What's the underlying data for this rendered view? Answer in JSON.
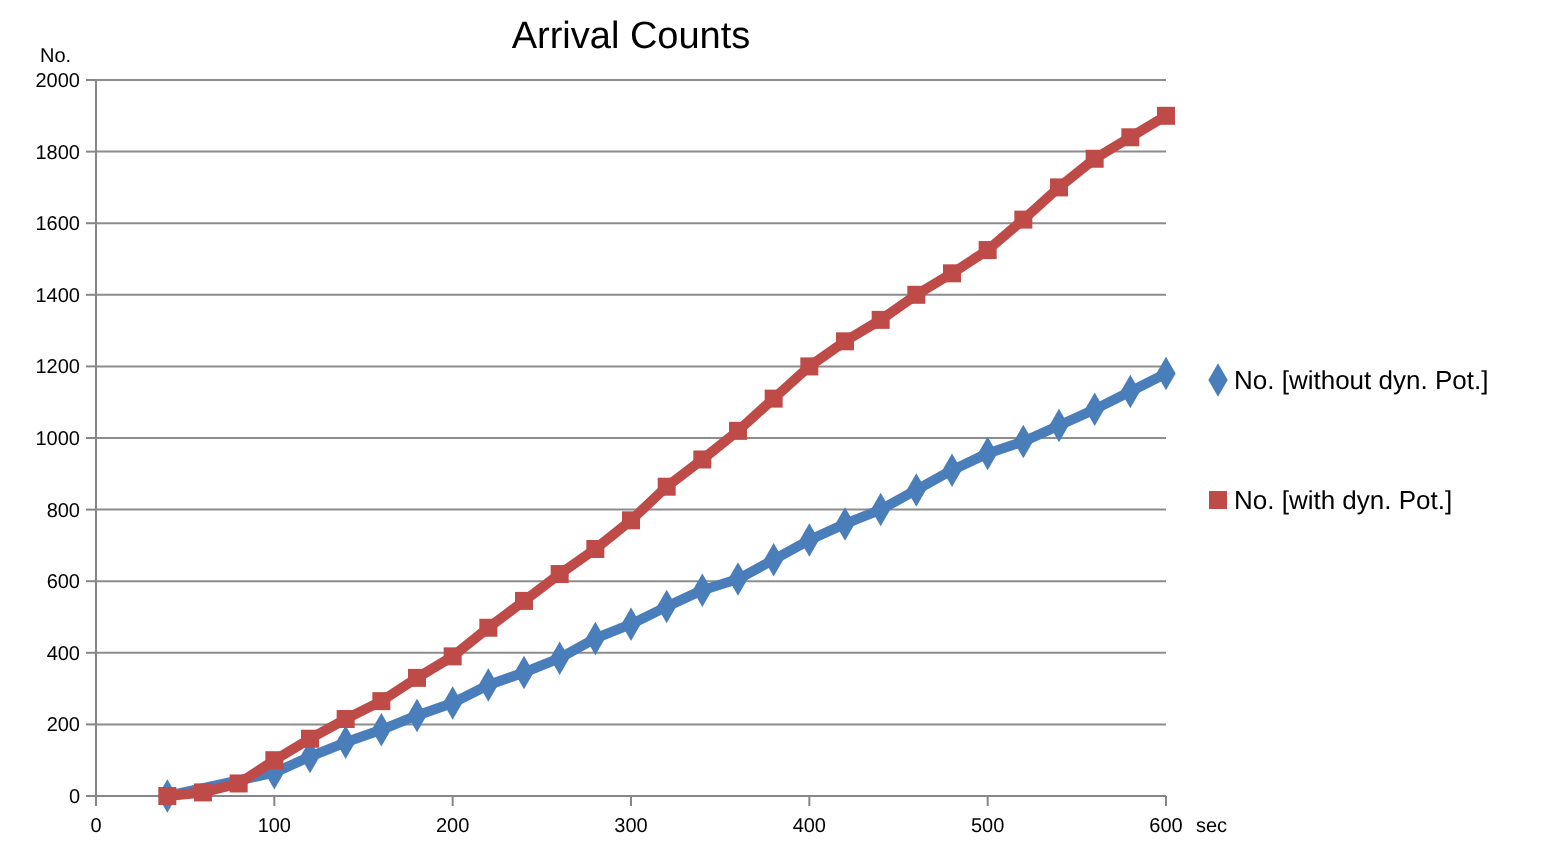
{
  "chart_data": {
    "type": "line",
    "title": "Arrival Counts",
    "xlabel": "sec",
    "ylabel": "No.",
    "xlim": [
      0,
      600
    ],
    "xticks": [
      0,
      100,
      200,
      300,
      400,
      500,
      600
    ],
    "ylim": [
      0,
      2000
    ],
    "yticks": [
      0,
      200,
      400,
      600,
      800,
      1000,
      1200,
      1400,
      1600,
      1800,
      2000
    ],
    "grid": "y",
    "legend": "right",
    "line_style": "solid",
    "series": [
      {
        "name": "No. [without dyn. Pot.]",
        "color": "#4a7ebb",
        "marker": "diamond",
        "x": [
          40,
          60,
          80,
          100,
          120,
          140,
          160,
          180,
          200,
          220,
          240,
          260,
          280,
          300,
          320,
          340,
          360,
          380,
          400,
          420,
          440,
          460,
          480,
          500,
          520,
          540,
          560,
          580,
          600
        ],
        "values": [
          0,
          null,
          null,
          65,
          110,
          150,
          185,
          225,
          260,
          310,
          345,
          385,
          440,
          480,
          529,
          575,
          606,
          660,
          715,
          760,
          800,
          855,
          910,
          957,
          990,
          1035,
          1080,
          1130,
          1180
        ]
      },
      {
        "name": "No. [with dyn. Pot.]",
        "color": "#be4b48",
        "marker": "square",
        "x": [
          40,
          60,
          80,
          100,
          120,
          140,
          160,
          180,
          200,
          220,
          240,
          260,
          280,
          300,
          320,
          340,
          360,
          380,
          400,
          420,
          440,
          460,
          480,
          500,
          520,
          540,
          560,
          580,
          600
        ],
        "values": [
          0,
          10,
          35,
          100,
          160,
          215,
          265,
          330,
          390,
          470,
          545,
          620,
          690,
          770,
          864,
          940,
          1020,
          1110,
          1200,
          1270,
          1330,
          1400,
          1460,
          1525,
          1610,
          1700,
          1780,
          1840,
          1900
        ]
      }
    ]
  }
}
